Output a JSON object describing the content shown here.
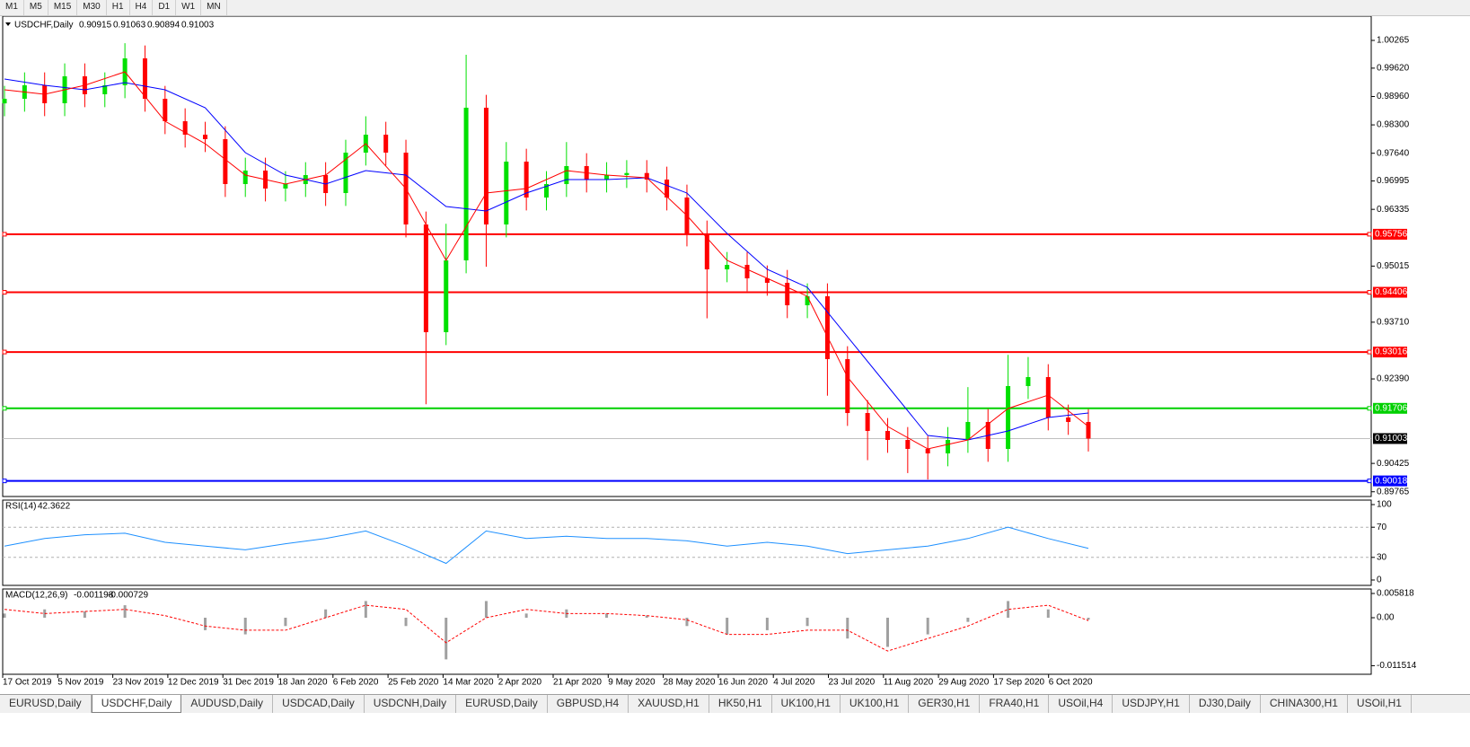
{
  "toolbar": {
    "timeframes": [
      "M1",
      "M5",
      "M15",
      "M30",
      "H1",
      "H4",
      "D1",
      "W1",
      "MN"
    ]
  },
  "chart_data": [
    {
      "type": "candlestick",
      "title": "USDCHF,Daily",
      "header_values": [
        0.90915,
        0.91063,
        0.90894,
        0.91003
      ],
      "x_labels": [
        "17 Oct 2019",
        "5 Nov 2019",
        "23 Nov 2019",
        "12 Dec 2019",
        "31 Dec 2019",
        "18 Jan 2020",
        "6 Feb 2020",
        "25 Feb 2020",
        "14 Mar 2020",
        "2 Apr 2020",
        "21 Apr 2020",
        "9 May 2020",
        "28 May 2020",
        "16 Jun 2020",
        "4 Jul 2020",
        "23 Jul 2020",
        "11 Aug 2020",
        "29 Aug 2020",
        "17 Sep 2020",
        "6 Oct 2020"
      ],
      "open": [
        0.988,
        0.98907,
        0.99221,
        0.98803,
        0.9943,
        0.99012,
        0.99221,
        0.99847,
        0.98907,
        0.98385,
        0.98072,
        0.97968,
        0.96923,
        0.97237,
        0.96819,
        0.96923,
        0.97132,
        0.96714,
        0.97654,
        0.98072,
        0.97654,
        0.95983,
        0.93477,
        0.95148,
        0.98699,
        0.95983,
        0.97445,
        0.9661,
        0.96923,
        0.97341,
        0.97028,
        0.97132,
        0.9718,
        0.97028,
        0.9661,
        0.95774,
        0.94939,
        0.95043,
        0.9473,
        0.94626,
        0.94104,
        0.94313,
        0.92851,
        0.91597,
        0.9118,
        0.90971,
        0.90762,
        0.90658,
        0.90971,
        0.91389,
        0.90762,
        0.92224,
        0.92433,
        0.91493,
        0.91389
      ],
      "high": [
        0.99207,
        0.99521,
        0.99521,
        0.9973,
        0.9973,
        0.99521,
        1.002,
        1.00147,
        0.99207,
        0.98685,
        0.98372,
        0.98268,
        0.97537,
        0.97537,
        0.97223,
        0.97432,
        0.97432,
        0.97954,
        0.985,
        0.98372,
        0.97954,
        0.96283,
        0.96,
        0.9993,
        0.98999,
        0.979,
        0.97745,
        0.97223,
        0.979,
        0.97641,
        0.97432,
        0.9748,
        0.9748,
        0.97328,
        0.9691,
        0.96074,
        0.95343,
        0.95343,
        0.9503,
        0.94926,
        0.94613,
        0.94613,
        0.93151,
        0.91897,
        0.9148,
        0.91271,
        0.91062,
        0.91271,
        0.922,
        0.91689,
        0.9295,
        0.929,
        0.92733,
        0.91793,
        0.91689
      ],
      "low": [
        0.985,
        0.98607,
        0.98503,
        0.98503,
        0.98712,
        0.98712,
        0.98921,
        0.98607,
        0.98085,
        0.97772,
        0.97668,
        0.96623,
        0.96623,
        0.96519,
        0.96519,
        0.96623,
        0.96414,
        0.96414,
        0.97354,
        0.97354,
        0.95683,
        0.918,
        0.93177,
        0.94848,
        0.95,
        0.95683,
        0.9631,
        0.9631,
        0.96623,
        0.96728,
        0.96728,
        0.96832,
        0.96728,
        0.9631,
        0.95474,
        0.938,
        0.94639,
        0.9443,
        0.94326,
        0.93804,
        0.93804,
        0.92,
        0.91297,
        0.905,
        0.90671,
        0.902,
        0.9005,
        0.90358,
        0.90671,
        0.90462,
        0.90462,
        0.91924,
        0.91193,
        0.91089,
        0.90703
      ],
      "close": [
        0.98907,
        0.99221,
        0.98803,
        0.9943,
        0.99012,
        0.99221,
        0.99847,
        0.98907,
        0.98385,
        0.98072,
        0.97968,
        0.96923,
        0.97237,
        0.96819,
        0.96923,
        0.97132,
        0.96714,
        0.97654,
        0.98072,
        0.97654,
        0.95983,
        0.93477,
        0.95148,
        0.98699,
        0.95983,
        0.97445,
        0.9661,
        0.96923,
        0.97341,
        0.97028,
        0.97132,
        0.9718,
        0.97028,
        0.9661,
        0.95774,
        0.94939,
        0.95043,
        0.9473,
        0.94626,
        0.94104,
        0.94313,
        0.92851,
        0.91597,
        0.9118,
        0.90971,
        0.90762,
        0.90658,
        0.90971,
        0.91389,
        0.90762,
        0.92224,
        0.92433,
        0.91493,
        0.91389,
        0.91003
      ],
      "up_color": "#00e000",
      "down_color": "#ff0000",
      "ma": [
        {
          "color": "#0000ff",
          "values": [
            0.99367,
            0.99221,
            0.99116,
            0.99283,
            0.99116,
            0.98699,
            0.97654,
            0.97132,
            0.96923,
            0.97237,
            0.97132,
            0.96401,
            0.96297,
            0.96714,
            0.97028,
            0.97028,
            0.97069,
            0.96714,
            0.95774,
            0.94939,
            0.94521,
            0.93372,
            0.92224,
            0.91075,
            0.90971,
            0.9118,
            0.91493,
            0.91597
          ]
        },
        {
          "color": "#ff0000",
          "values": [
            0.99116,
            0.99012,
            0.99221,
            0.99534,
            0.98385,
            0.97863,
            0.97132,
            0.96923,
            0.97132,
            0.97863,
            0.96819,
            0.95148,
            0.96714,
            0.96819,
            0.97237,
            0.97132,
            0.97069,
            0.96192,
            0.95148,
            0.9473,
            0.94313,
            0.92433,
            0.91284,
            0.90762,
            0.90971,
            0.91702,
            0.92015,
            0.91284
          ]
        }
      ],
      "levels": [
        {
          "value": 0.95756,
          "color": "#ff0000"
        },
        {
          "value": 0.94406,
          "color": "#ff0000"
        },
        {
          "value": 0.93016,
          "color": "#ff0000"
        },
        {
          "value": 0.91706,
          "color": "#00d000"
        },
        {
          "value": 0.90018,
          "color": "#0000ff"
        }
      ],
      "current_price": 0.91003,
      "ylim": [
        0.89655,
        1.00829
      ],
      "yticks": [
        1.00265,
        {
          "value": 0.9962,
          "label": "0.99620"
        },
        {
          "value": 0.9896,
          "label": "0.98960"
        },
        {
          "value": 0.983,
          "label": "0.98300"
        },
        {
          "value": 0.9764,
          "label": "0.97640"
        },
        0.96995,
        0.96335,
        0.95015,
        {
          "value": 0.9371,
          "label": "0.93710"
        },
        {
          "value": 0.9239,
          "label": "0.92390"
        },
        0.90425,
        0.89765
      ]
    },
    {
      "type": "line",
      "title": "RSI(14)",
      "last_value": 42.3622,
      "color": "#1e90ff",
      "values": [
        45,
        55,
        60,
        62,
        50,
        45,
        40,
        48,
        55,
        65,
        45,
        22,
        65,
        55,
        58,
        55,
        55,
        52,
        45,
        50,
        45,
        35,
        40,
        45,
        55,
        70,
        55,
        42
      ],
      "ylim": [
        0,
        100
      ],
      "yticks": [
        100,
        70,
        30,
        0
      ]
    },
    {
      "type": "macd",
      "title": "MACD(12,26,9)",
      "last_values": [
        -0.001198,
        -0.000729
      ],
      "histogram": [
        0.001,
        0.002,
        0.0015,
        0.003,
        0.0,
        -0.003,
        -0.004,
        -0.002,
        0.002,
        0.004,
        -0.002,
        -0.01,
        0.004,
        0.001,
        0.002,
        0.001,
        0.0005,
        -0.002,
        -0.004,
        -0.003,
        -0.002,
        -0.005,
        -0.007,
        -0.004,
        -0.001,
        0.004,
        0.002,
        -0.0005
      ],
      "signal": [
        0.002,
        0.001,
        0.0015,
        0.002,
        0.0005,
        -0.002,
        -0.003,
        -0.003,
        0.0,
        0.003,
        0.002,
        -0.006,
        0.0,
        0.002,
        0.001,
        0.001,
        0.0005,
        -0.0005,
        -0.004,
        -0.004,
        -0.003,
        -0.003,
        -0.008,
        -0.005,
        -0.002,
        0.002,
        0.003,
        -0.0007
      ],
      "histogram_color": "#a0a0a0",
      "signal_color": "#ff0000",
      "ylim": [
        -0.013575,
        0.006895
      ],
      "yticks": [
        0.005818,
        {
          "value": 0,
          "label": "0.00"
        },
        -0.011514
      ]
    }
  ],
  "tabs": {
    "items": [
      "EURUSD,Daily",
      "USDCHF,Daily",
      "AUDUSD,Daily",
      "USDCAD,Daily",
      "USDCNH,Daily",
      "EURUSD,Daily",
      "GBPUSD,H4",
      "XAUUSD,H1",
      "HK50,H1",
      "UK100,H1",
      "UK100,H1",
      "GER30,H1",
      "FRA40,H1",
      "USOil,H4",
      "USDJPY,H1",
      "DJ30,Daily",
      "CHINA300,H1",
      "USOil,H1"
    ],
    "active": 1
  }
}
